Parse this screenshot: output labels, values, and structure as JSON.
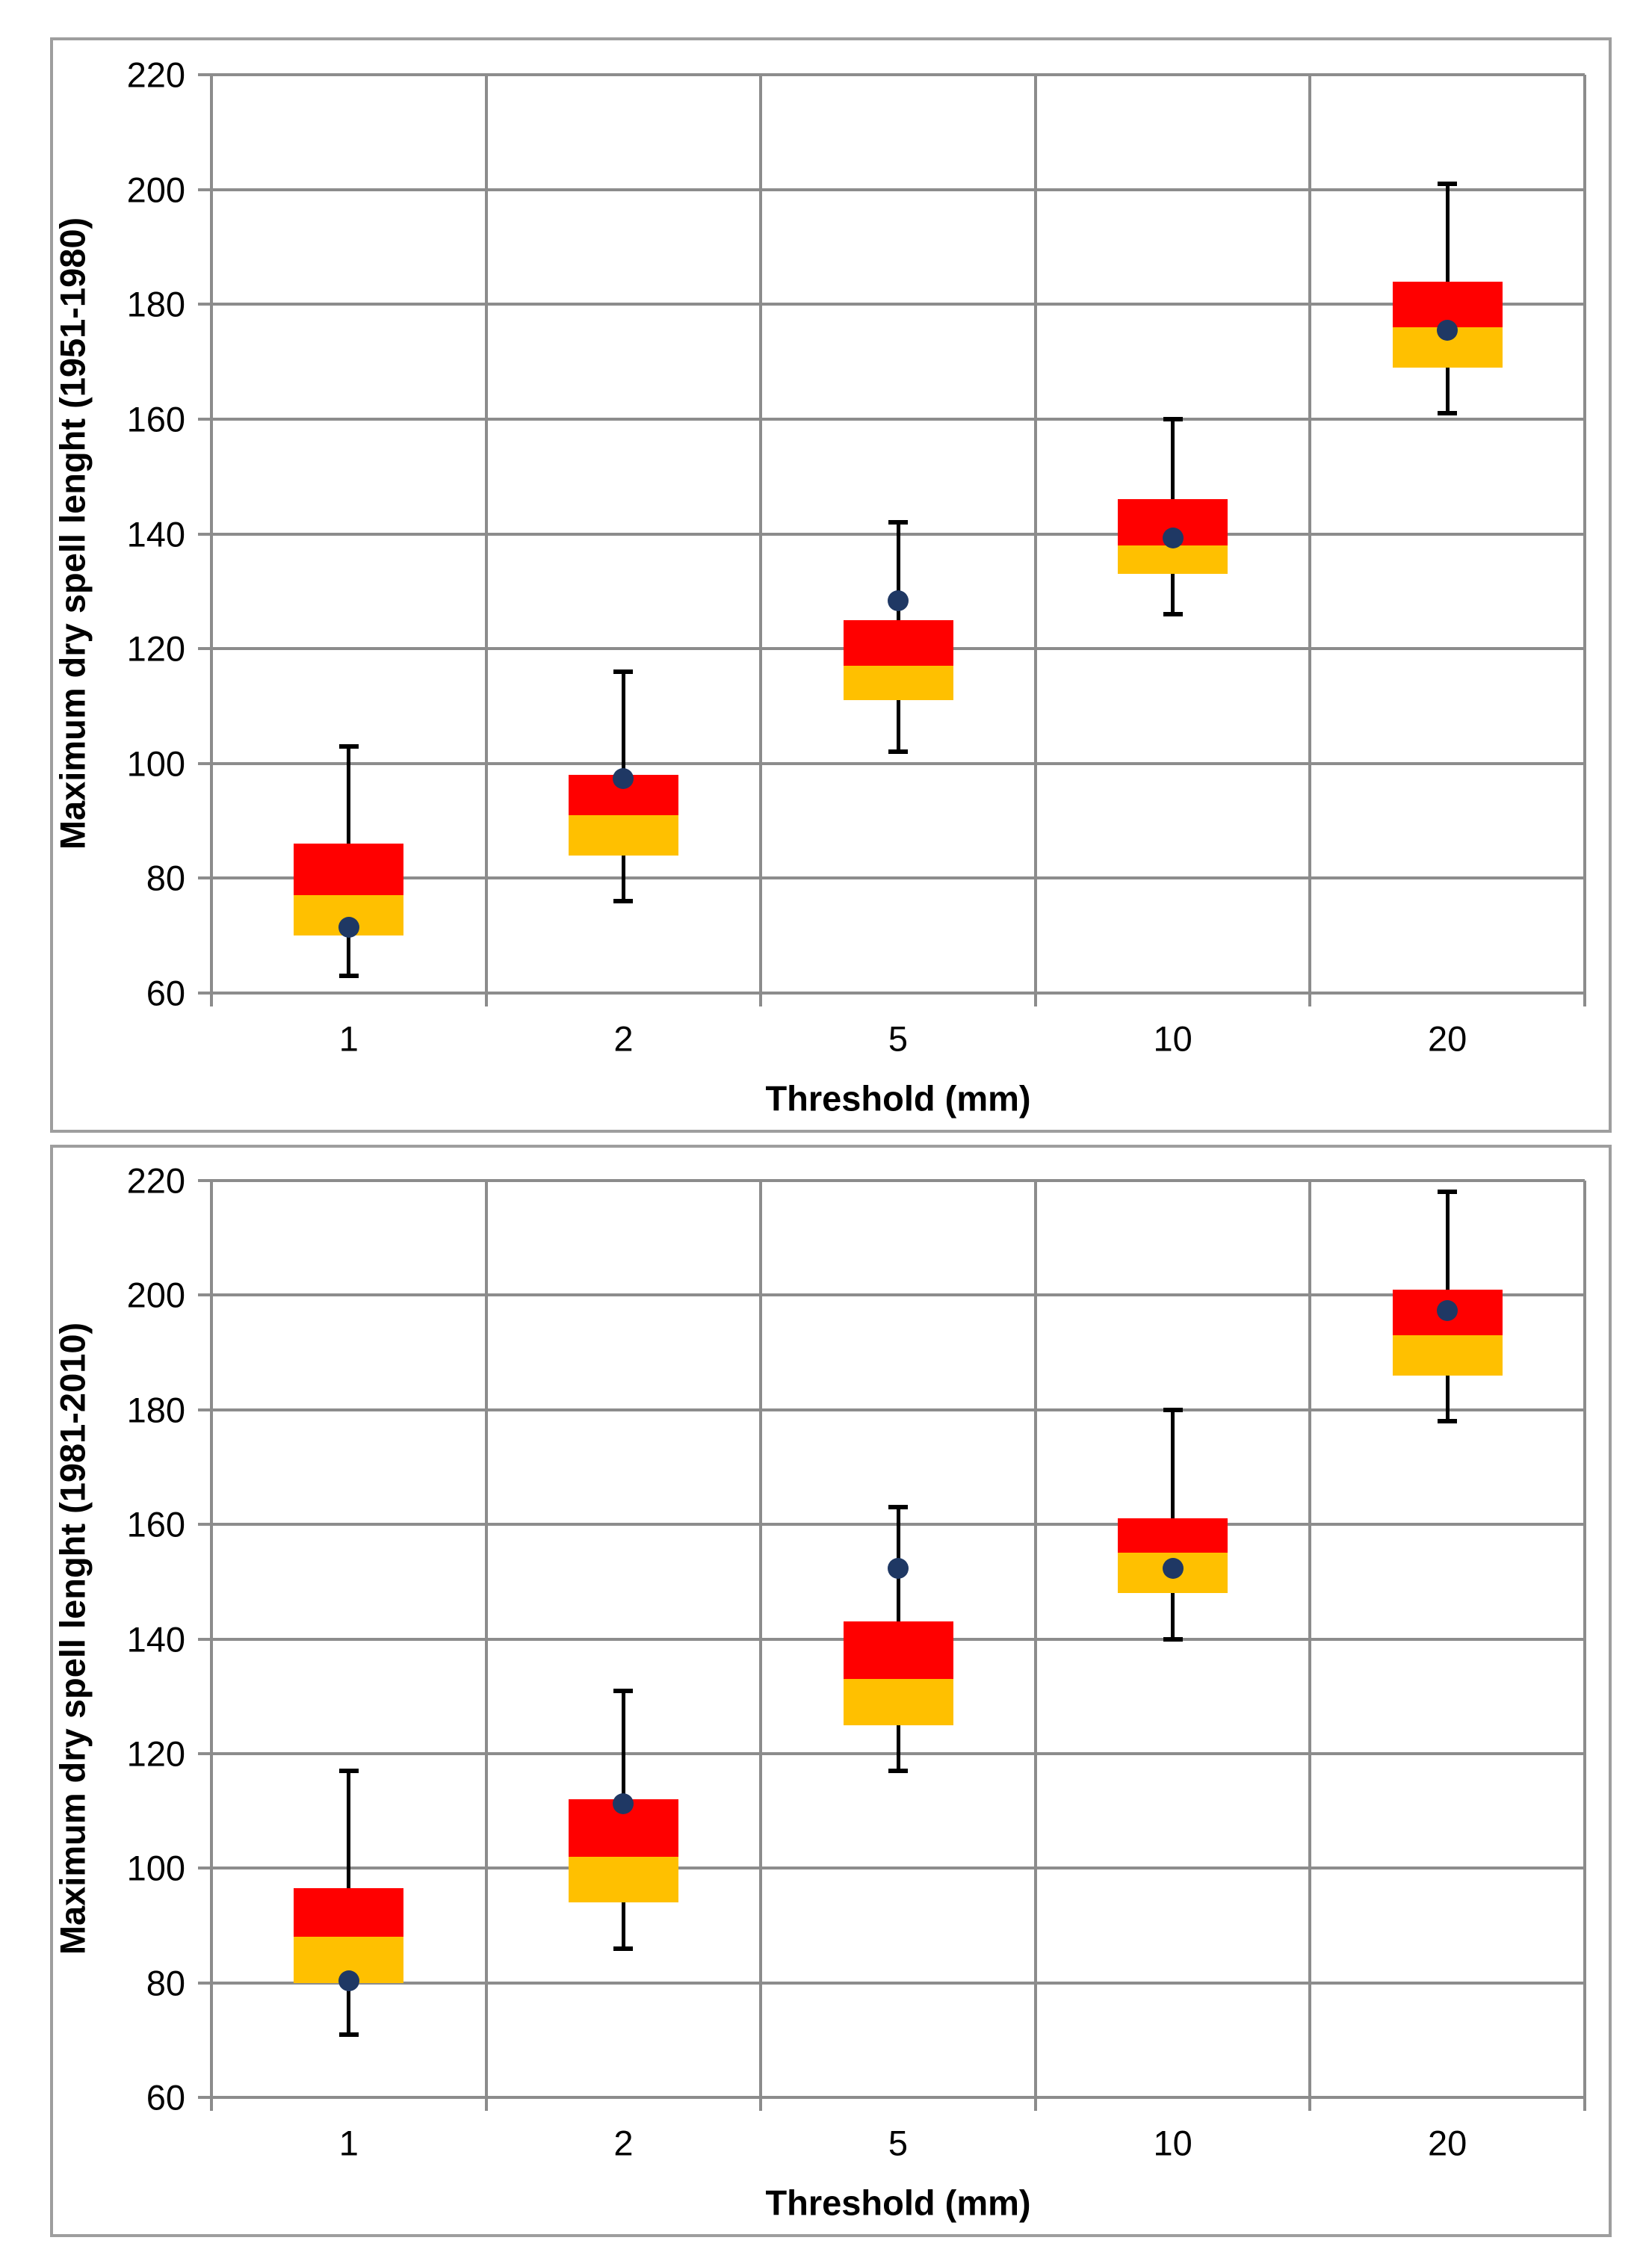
{
  "colors": {
    "box_upper": "#ff0000",
    "box_lower": "#ffc000",
    "mean_dot": "#1f3864",
    "gridline": "#8c8c8c",
    "frame_border": "#9e9e9e",
    "whisker": "#000000",
    "text": "#000000"
  },
  "chart_data": [
    {
      "type": "boxplot",
      "ylabel": "Maximum dry spell lenght (1951-1980)",
      "xlabel": "Threshold (mm)",
      "categories": [
        "1",
        "2",
        "5",
        "10",
        "20"
      ],
      "ylim": [
        60,
        220
      ],
      "ytick_step": 20,
      "grid": true,
      "legend": "none",
      "points": [
        {
          "category": "1",
          "min": 63,
          "q1": 70,
          "median": 77,
          "q3": 86,
          "max": 103,
          "mean": 71.5
        },
        {
          "category": "2",
          "min": 76,
          "q1": 84,
          "median": 91,
          "q3": 98,
          "max": 116,
          "mean": 97.3
        },
        {
          "category": "5",
          "min": 102,
          "q1": 111,
          "median": 117,
          "q3": 125,
          "max": 142,
          "mean": 128.4
        },
        {
          "category": "10",
          "min": 126,
          "q1": 133,
          "median": 138,
          "q3": 146,
          "max": 160,
          "mean": 139.3
        },
        {
          "category": "20",
          "min": 161,
          "q1": 169,
          "median": 176,
          "q3": 184,
          "max": 201,
          "mean": 175.5
        }
      ]
    },
    {
      "type": "boxplot",
      "ylabel": "Maximum dry spell lenght (1981-2010)",
      "xlabel": "Threshold (mm)",
      "categories": [
        "1",
        "2",
        "5",
        "10",
        "20"
      ],
      "ylim": [
        60,
        220
      ],
      "ytick_step": 20,
      "grid": true,
      "legend": "none",
      "points": [
        {
          "category": "1",
          "min": 71,
          "q1": 80,
          "median": 88,
          "q3": 96.5,
          "max": 117,
          "mean": 80.3
        },
        {
          "category": "2",
          "min": 86,
          "q1": 94,
          "median": 102,
          "q3": 112,
          "max": 131,
          "mean": 111.2
        },
        {
          "category": "5",
          "min": 117,
          "q1": 125,
          "median": 133,
          "q3": 143,
          "max": 163,
          "mean": 152.3
        },
        {
          "category": "10",
          "min": 140,
          "q1": 148,
          "median": 155,
          "q3": 161,
          "max": 180,
          "mean": 152.3
        },
        {
          "category": "20",
          "min": 178,
          "q1": 186,
          "median": 193,
          "q3": 201,
          "max": 218,
          "mean": 197.3
        }
      ]
    }
  ]
}
